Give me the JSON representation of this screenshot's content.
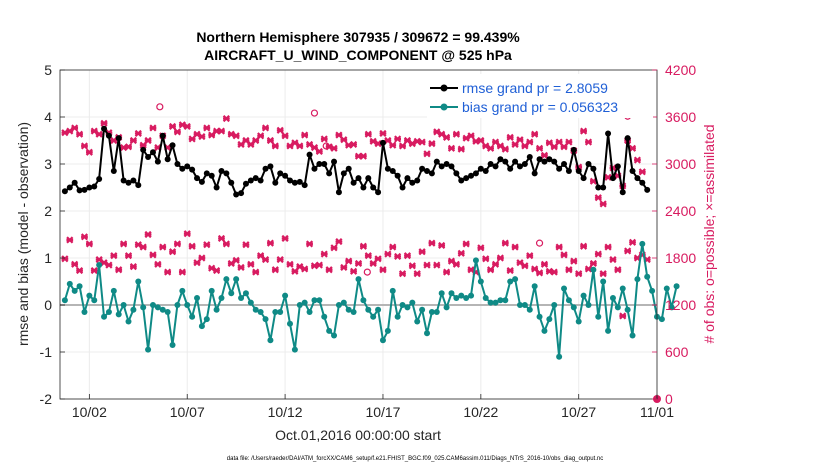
{
  "chart_data": {
    "type": "line",
    "title_line1": "Northern Hemisphere 307935 / 309672 = 99.439%",
    "title_line2": "AIRCRAFT_U_WIND_COMPONENT @ 525 hPa",
    "xlabel": "Oct.01,2016 00:00:00 start",
    "ylabel_left": "rmse and bias (model - observation)",
    "ylabel_right": "# of obs: o=possible; ×=assimilated",
    "footnote": "data file: /Users/raeder/DAI/ATM_forcXX/CAM6_setup/f.e21.FHIST_BGC.f09_025.CAM6assim.011/Diags_NTrS_2016-10/obs_diag_output.nc",
    "xlim": [
      0.5,
      31
    ],
    "ylim_left": [
      -2,
      5
    ],
    "ylim_right": [
      0,
      4200
    ],
    "x_ticks": [
      2,
      7,
      12,
      17,
      22,
      27,
      32
    ],
    "x_tick_labels": [
      "10/02",
      "10/07",
      "10/12",
      "10/17",
      "10/22",
      "10/27",
      "11/01"
    ],
    "y_left_ticks": [
      "-2",
      "-1",
      "0",
      "1",
      "2",
      "3",
      "4",
      "5"
    ],
    "y_right_ticks": [
      "0",
      "600",
      "1200",
      "1800",
      "2400",
      "3000",
      "3600",
      "4200"
    ],
    "x_start": 0.75,
    "x_step": 0.25,
    "legend": [
      {
        "name": "rmse grand pr = 2.8059",
        "color": "#000000"
      },
      {
        "name": "bias grand pr = 0.056323",
        "color": "#0f8a86"
      }
    ],
    "series": [
      {
        "name": "rmse",
        "color": "#000000",
        "values": [
          2.42,
          2.5,
          2.6,
          2.44,
          2.45,
          2.5,
          2.52,
          2.68,
          3.75,
          3.6,
          2.85,
          3.55,
          2.65,
          2.6,
          2.65,
          2.55,
          3.3,
          3.15,
          3.25,
          3.05,
          3.6,
          3.1,
          3.4,
          3.0,
          2.9,
          2.95,
          2.88,
          2.7,
          2.62,
          2.8,
          2.75,
          2.5,
          2.85,
          2.8,
          2.6,
          2.35,
          2.38,
          2.58,
          2.65,
          2.7,
          2.65,
          2.9,
          2.95,
          2.6,
          2.8,
          2.75,
          2.65,
          2.6,
          2.62,
          2.55,
          3.2,
          2.9,
          3.0,
          3.0,
          2.8,
          3.05,
          2.4,
          2.8,
          2.9,
          2.6,
          2.7,
          2.5,
          2.7,
          2.5,
          2.4,
          3.45,
          2.9,
          2.85,
          2.75,
          2.5,
          2.7,
          2.6,
          2.65,
          2.9,
          2.85,
          2.8,
          3.05,
          2.95,
          3.0,
          2.95,
          2.8,
          2.65,
          2.7,
          2.75,
          2.8,
          2.9,
          2.85,
          3.0,
          2.95,
          3.1,
          3.05,
          2.9,
          3.05,
          2.95,
          3.0,
          3.15,
          2.8,
          3.1,
          3.05,
          3.1,
          3.05,
          2.9,
          3.0,
          2.85,
          3.3,
          2.85,
          2.7,
          3.0,
          2.9,
          2.5,
          2.5,
          3.65,
          2.7,
          2.95,
          2.4,
          3.55,
          2.85,
          2.7,
          2.6,
          2.45
        ],
        "markers_every": 1
      },
      {
        "name": "bias",
        "color": "#0f8a86",
        "values": [
          0.1,
          0.45,
          0.3,
          0.4,
          -0.15,
          0.2,
          0.1,
          0.85,
          -0.25,
          -0.15,
          0.3,
          -0.2,
          0.0,
          -0.35,
          -0.1,
          0.5,
          -0.05,
          -0.95,
          0.0,
          -0.05,
          -0.1,
          -0.15,
          -0.85,
          0.0,
          0.3,
          0.0,
          -0.25,
          0.15,
          -0.45,
          -0.3,
          0.3,
          -0.1,
          0.15,
          0.55,
          0.25,
          0.55,
          0.15,
          0.25,
          0.05,
          -0.1,
          -0.15,
          -0.3,
          -0.75,
          -0.15,
          -0.15,
          0.2,
          -0.4,
          -0.95,
          0.0,
          0.05,
          -0.15,
          0.1,
          0.1,
          -0.25,
          -0.55,
          -0.65,
          0.0,
          0.05,
          -0.1,
          -0.15,
          0.55,
          0.1,
          -0.1,
          -0.25,
          -0.1,
          -0.75,
          -0.55,
          0.3,
          -0.25,
          0.0,
          -0.05,
          0.05,
          -0.35,
          -0.1,
          -0.6,
          -0.15,
          -0.15,
          0.25,
          -0.05,
          0.25,
          0.15,
          0.2,
          0.15,
          0.2,
          0.95,
          0.5,
          0.15,
          0.05,
          0.05,
          0.1,
          0.1,
          0.5,
          0.55,
          0.0,
          0.0,
          -0.1,
          0.4,
          -0.25,
          -0.55,
          -0.3,
          0.0,
          -1.1,
          0.35,
          0.1,
          -0.05,
          -0.35,
          0.2,
          0.0,
          0.75,
          -0.25,
          0.5,
          -0.55,
          0.15,
          -0.05,
          0.35,
          -0.1,
          -0.65,
          0.55,
          1.3,
          0.6,
          0.3,
          -0.25,
          -0.3,
          0.35,
          -0.05,
          0.4
        ]
      },
      {
        "name": "obs_assimilated_upper",
        "color": "#d81b60",
        "values": [
          3400,
          3420,
          3460,
          3380,
          3230,
          3150,
          3420,
          3380,
          3520,
          3400,
          3300,
          3340,
          3210,
          3220,
          3300,
          3390,
          3240,
          3300,
          3460,
          3210,
          3360,
          3210,
          3480,
          3410,
          3500,
          3480,
          3320,
          3380,
          3350,
          3460,
          3370,
          3420,
          3420,
          3580,
          3380,
          3360,
          3250,
          3300,
          3250,
          3300,
          3360,
          3460,
          3300,
          3230,
          3430,
          3360,
          3230,
          3270,
          3230,
          3370,
          3250,
          3210,
          3160,
          3320,
          3220,
          3200,
          3370,
          3310,
          3240,
          3250,
          3100,
          3100,
          3380,
          3290,
          3260,
          3390,
          3300,
          3240,
          3320,
          3230,
          3300,
          3260,
          3290,
          3280,
          3130,
          3260,
          3410,
          3380,
          3340,
          3200,
          3380,
          3190,
          3330,
          3360,
          3290,
          3300,
          3230,
          3200,
          3280,
          3230,
          3190,
          3340,
          3250,
          3310,
          3230,
          3280,
          3380,
          3200,
          3110,
          3270,
          3220,
          3280,
          3220,
          3280,
          3170,
          2960,
          3420,
          3280,
          2780,
          2570,
          2490,
          2830,
          2950,
          2850,
          2720,
          3300,
          3200,
          3050,
          2900
        ],
        "marker": "x"
      },
      {
        "name": "obs_assimilated_lower",
        "color": "#d81b60",
        "values": [
          1790,
          2030,
          1720,
          1640,
          2070,
          1980,
          1640,
          1780,
          1740,
          1710,
          1830,
          1650,
          1980,
          1830,
          1690,
          1970,
          1940,
          2100,
          1840,
          1720,
          1940,
          1620,
          1880,
          1980,
          1620,
          2110,
          1950,
          1740,
          1800,
          1970,
          1670,
          1640,
          2050,
          1980,
          1730,
          1770,
          1680,
          1970,
          1720,
          1620,
          1830,
          1780,
          1990,
          1650,
          1780,
          2050,
          1720,
          1630,
          1690,
          1660,
          1980,
          1700,
          1710,
          1850,
          1650,
          1930,
          2010,
          1680,
          1760,
          1630,
          1730,
          1950,
          1830,
          1730,
          1790,
          1650,
          1850,
          1940,
          1820,
          1600,
          1830,
          1700,
          1600,
          1880,
          1710,
          1990,
          1710,
          1960,
          1620,
          1760,
          1720,
          1860,
          1980,
          1650,
          1620,
          1930,
          1790,
          1650,
          1720,
          1800,
          1990,
          1640,
          1940,
          1740,
          1700,
          1830,
          1660,
          1610,
          1720,
          1630,
          1620,
          1940,
          1840,
          1650,
          1760,
          1600,
          1950,
          1660,
          1730,
          1850,
          1600,
          1940,
          1780,
          1650,
          1060,
          1890,
          2000,
          1800,
          1840,
          1780
        ],
        "marker": "x"
      },
      {
        "name": "obs_possible_extra",
        "color": "#d81b60",
        "values": [
          {
            "x": 5.6,
            "y": 3730
          },
          {
            "x": 13.5,
            "y": 3650
          },
          {
            "x": 14.1,
            "y": 3230
          },
          {
            "x": 16.2,
            "y": 1620
          },
          {
            "x": 25.0,
            "y": 1990
          },
          {
            "x": 29.5,
            "y": 3610
          }
        ],
        "marker": "o"
      }
    ]
  }
}
